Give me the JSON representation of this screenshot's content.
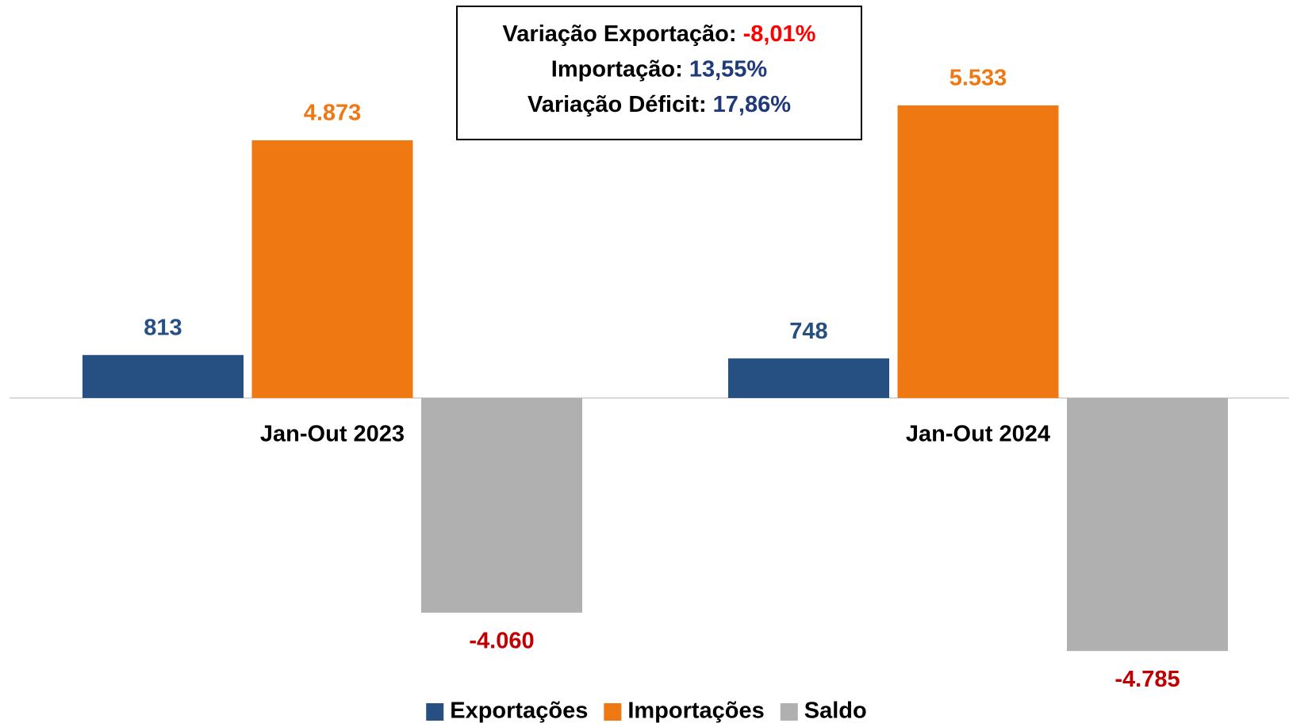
{
  "chart_data": {
    "type": "bar",
    "categories": [
      "Jan-Out 2023",
      "Jan-Out 2024"
    ],
    "series": [
      {
        "name": "Exportações",
        "color": "#264f82",
        "label_color": "#264f82",
        "values": [
          813,
          748
        ],
        "value_labels": [
          "813",
          "748"
        ]
      },
      {
        "name": "Importações",
        "color": "#f07812",
        "label_color": "#f07812",
        "values": [
          4873,
          5533
        ],
        "value_labels": [
          "4.873",
          "5.533"
        ]
      },
      {
        "name": "Saldo",
        "color": "#b0b0b0",
        "label_color": "#c00000",
        "values": [
          -4060,
          -4785
        ],
        "value_labels": [
          "-4.060",
          "-4.785"
        ]
      }
    ],
    "annotations": [
      {
        "label": "Variação Exportação:",
        "value": "-8,01%",
        "color": "#ff0000"
      },
      {
        "label": "Importação:",
        "value": "13,55%",
        "color": "#1f3a7a"
      },
      {
        "label": "Variação Déficit:",
        "value": "17,86%",
        "color": "#1f3a7a"
      }
    ],
    "legend": "bottom"
  }
}
